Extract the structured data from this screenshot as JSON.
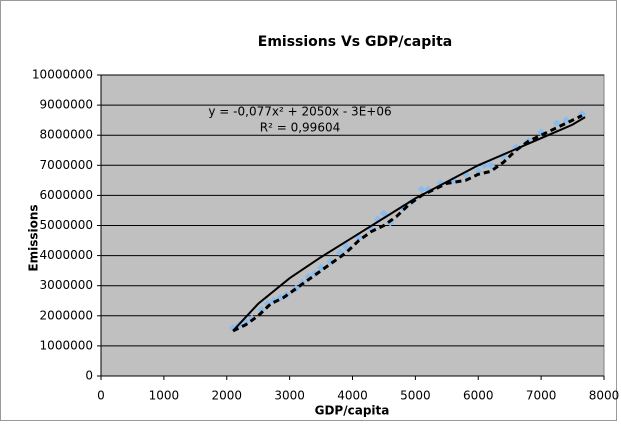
{
  "chart_data": {
    "type": "scatter",
    "title": "Emissions Vs GDP/capita",
    "xlabel": "GDP/capita",
    "ylabel": "Emissions",
    "annotations": [
      "y = -0,077x² + 2050x - 3E+06",
      "R² = 0,99604"
    ],
    "xlim": [
      0,
      8000
    ],
    "xticks": [
      0,
      1000,
      2000,
      3000,
      4000,
      5000,
      6000,
      7000,
      8000
    ],
    "ylim": [
      0,
      10000000
    ],
    "yticks": [
      0,
      1000000,
      2000000,
      3000000,
      4000000,
      5000000,
      6000000,
      7000000,
      8000000,
      9000000,
      10000000
    ],
    "grid": true,
    "plot_background": "#c0c0c0",
    "series": [
      {
        "color": "#8cbcec",
        "marker": "diamond",
        "x": [
          2100,
          2200,
          2300,
          2400,
          2550,
          2650,
          2750,
          2850,
          2950,
          3100,
          3200,
          3300,
          3400,
          3500,
          3650,
          3800,
          3900,
          4100,
          4300,
          4400,
          4500,
          4600,
          4800,
          4950,
          5100,
          5200,
          5400,
          5600,
          5800,
          6000,
          6100,
          6200,
          6400,
          6600,
          6800,
          7000,
          7250,
          7400,
          7650
        ],
        "values": [
          1600000,
          1700000,
          1800000,
          1900000,
          2200000,
          2400000,
          2500000,
          2600000,
          2700000,
          2900000,
          3100000,
          3300000,
          3400000,
          3600000,
          3800000,
          4100000,
          4300000,
          4600000,
          4900000,
          5200000,
          5400000,
          5100000,
          5600000,
          5800000,
          6200000,
          6200000,
          6400000,
          6500000,
          6700000,
          6800000,
          7000000,
          7000000,
          7300000,
          7600000,
          7800000,
          8100000,
          8400000,
          8500000,
          8700000
        ]
      },
      {
        "color": "#000000",
        "line": "dashed",
        "x": [
          2100,
          2300,
          2500,
          2700,
          2900,
          3100,
          3300,
          3500,
          3700,
          3900,
          4100,
          4300,
          4500,
          4700,
          4900,
          5100,
          5300,
          5500,
          5800,
          6000,
          6200,
          6400,
          6600,
          6800,
          7000,
          7200,
          7400,
          7650
        ],
        "values": [
          1500000,
          1700000,
          2000000,
          2400000,
          2600000,
          2900000,
          3200000,
          3500000,
          3800000,
          4100000,
          4500000,
          4800000,
          5000000,
          5300000,
          5700000,
          6000000,
          6200000,
          6400000,
          6500000,
          6700000,
          6800000,
          7100000,
          7500000,
          7800000,
          8000000,
          8200000,
          8400000,
          8650000
        ]
      },
      {
        "color": "#000000",
        "line": "solid",
        "x": [
          2100,
          2500,
          3000,
          3500,
          4000,
          4500,
          5000,
          5500,
          6000,
          6500,
          7000,
          7500,
          7700
        ],
        "values": [
          1500000,
          2400000,
          3250000,
          3950000,
          4600000,
          5250000,
          5900000,
          6450000,
          7000000,
          7450000,
          7900000,
          8350000,
          8600000
        ]
      }
    ]
  }
}
